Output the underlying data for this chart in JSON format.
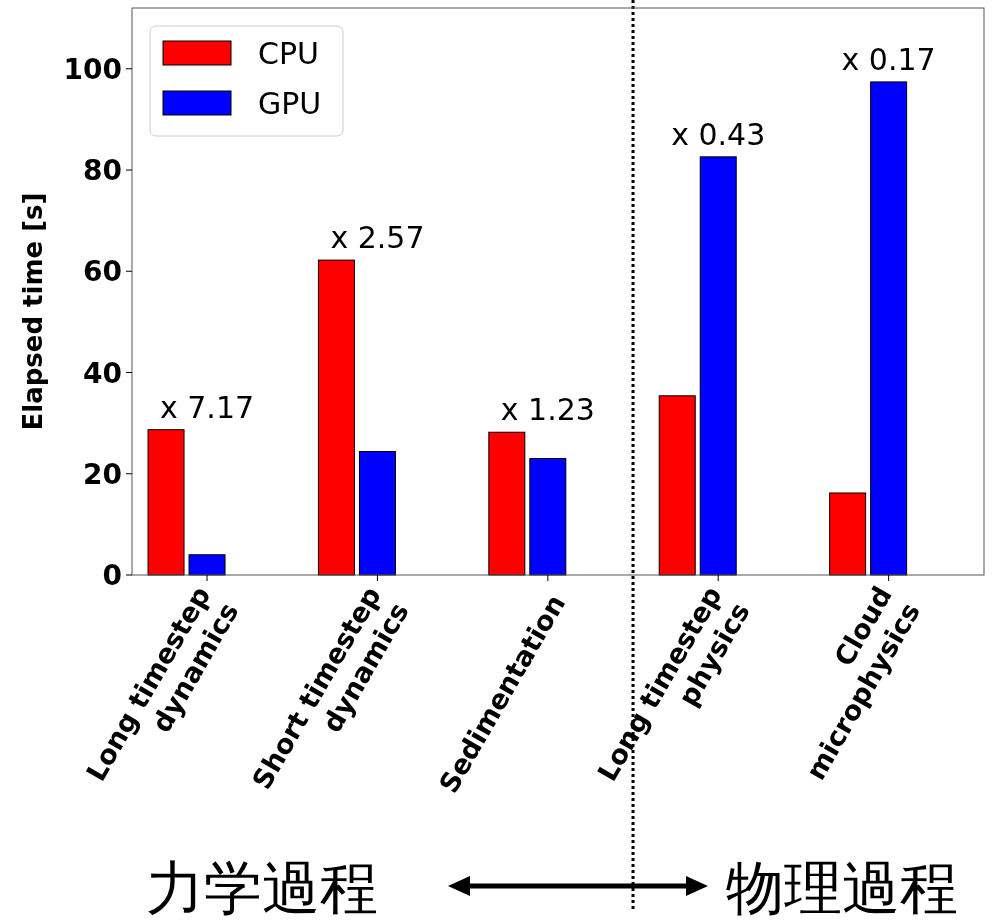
{
  "chart_data": {
    "type": "bar",
    "ylabel": "Elapsed time [s]",
    "categories": [
      "Long timestep dynamics",
      "Short timestep dynamics",
      "Sedimentation",
      "Long timestep physics",
      "Cloud microphysics"
    ],
    "series": [
      {
        "name": "CPU",
        "color": "#ff0000",
        "values": [
          28.7,
          62.2,
          28.2,
          35.4,
          16.2
        ]
      },
      {
        "name": "GPU",
        "color": "#0000ff",
        "values": [
          4.0,
          24.4,
          23.0,
          82.6,
          97.4
        ]
      }
    ],
    "ylim": [
      0,
      112
    ],
    "yticks": [
      0,
      20,
      40,
      60,
      80,
      100
    ],
    "grid": false,
    "legend": "top left",
    "annotations": [
      "x 7.17",
      "x 2.57",
      "x 1.23",
      "x 0.43",
      "x 0.17",
      "力学過程",
      "物理過程"
    ]
  }
}
